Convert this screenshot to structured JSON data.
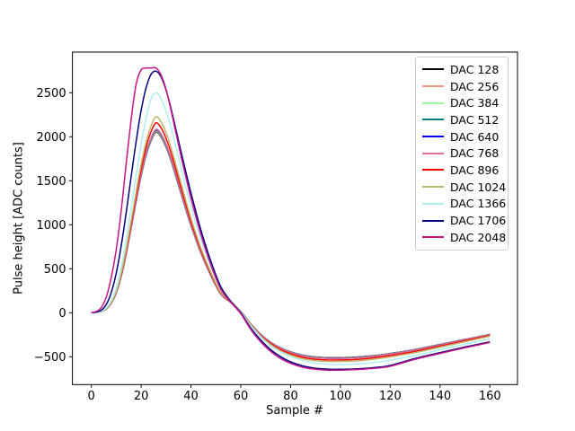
{
  "chart_data": {
    "type": "line",
    "title": "",
    "xlabel": "Sample #",
    "ylabel": "Pulse height [ADC counts]",
    "xlim": [
      -7.6,
      171.1
    ],
    "ylim": [
      -816,
      2962
    ],
    "x_ticks": [
      0,
      20,
      40,
      60,
      80,
      100,
      120,
      140,
      160
    ],
    "y_ticks": [
      -500,
      0,
      500,
      1000,
      1500,
      2000,
      2500
    ],
    "grid": false,
    "legend_position": "upper right",
    "frame_color": "#000000",
    "background_color": "#ffffff",
    "legend_border_color": "#cccccc",
    "x": [
      0,
      2,
      4,
      6,
      8,
      10,
      12,
      14,
      16,
      18,
      20,
      22,
      24,
      26,
      28,
      30,
      32,
      36,
      40,
      44,
      48,
      52,
      56,
      60,
      64,
      68,
      72,
      76,
      80,
      85,
      90,
      95,
      100,
      105,
      110,
      115,
      120,
      130,
      140,
      150,
      160
    ],
    "series": [
      {
        "name": "DAC 128",
        "color": "#000000",
        "values": [
          0,
          5,
          15,
          44,
          108,
          226,
          413,
          669,
          964,
          1269,
          1555,
          1791,
          1958,
          2052,
          1998,
          1884,
          1727,
          1353,
          989,
          679,
          423,
          212,
          118,
          15,
          -128,
          -246,
          -335,
          -399,
          -443,
          -482,
          -502,
          -510,
          -510,
          -506,
          -496,
          -481,
          -462,
          -417,
          -360,
          -303,
          -246
        ]
      },
      {
        "name": "DAC 256",
        "color": "#E9967A",
        "values": [
          0,
          5,
          15,
          44,
          109,
          227,
          415,
          672,
          968,
          1275,
          1561,
          1798,
          1966,
          2060,
          2006,
          1892,
          1734,
          1359,
          993,
          682,
          425,
          212,
          119,
          15,
          -128,
          -247,
          -336,
          -400,
          -445,
          -484,
          -504,
          -512,
          -512,
          -508,
          -498,
          -483,
          -464,
          -419,
          -362,
          -304,
          -247
        ]
      },
      {
        "name": "DAC 384",
        "color": "#98FB98",
        "values": [
          0,
          5,
          15,
          45,
          109,
          228,
          417,
          675,
          972,
          1280,
          1567,
          1805,
          1974,
          2068,
          2014,
          1900,
          1741,
          1364,
          997,
          685,
          427,
          213,
          119,
          15,
          -129,
          -248,
          -337,
          -402,
          -446,
          -486,
          -506,
          -514,
          -514,
          -510,
          -500,
          -485,
          -466,
          -421,
          -363,
          -306,
          -248
        ]
      },
      {
        "name": "DAC 512",
        "color": "#008080",
        "values": [
          0,
          5,
          15,
          45,
          109,
          229,
          418,
          677,
          975,
          1284,
          1572,
          1811,
          1980,
          2075,
          2020,
          1905,
          1746,
          1368,
          1000,
          687,
          428,
          214,
          119,
          15,
          -129,
          -249,
          -338,
          -403,
          -448,
          -488,
          -507,
          -515,
          -515,
          -511,
          -501,
          -487,
          -468,
          -422,
          -364,
          -306,
          -249
        ]
      },
      {
        "name": "DAC 640",
        "color": "#0000FF",
        "values": [
          0,
          5,
          15,
          45,
          110,
          230,
          419,
          679,
          978,
          1287,
          1577,
          1816,
          1986,
          2081,
          2026,
          1911,
          1751,
          1372,
          1003,
          689,
          429,
          215,
          120,
          15,
          -130,
          -250,
          -339,
          -404,
          -449,
          -489,
          -509,
          -517,
          -517,
          -513,
          -503,
          -488,
          -469,
          -423,
          -365,
          -307,
          -250
        ]
      },
      {
        "name": "DAC 768",
        "color": "#DB7093",
        "values": [
          0,
          5,
          15,
          45,
          110,
          230,
          420,
          680,
          980,
          1290,
          1580,
          1820,
          1990,
          2085,
          2030,
          1915,
          1755,
          1375,
          1005,
          690,
          430,
          215,
          120,
          15,
          -130,
          -250,
          -340,
          -405,
          -450,
          -490,
          -510,
          -518,
          -518,
          -514,
          -504,
          -489,
          -470,
          -424,
          -366,
          -308,
          -250
        ]
      },
      {
        "name": "DAC 896",
        "color": "#FF0000",
        "values": [
          0,
          5,
          16,
          47,
          114,
          238,
          435,
          704,
          1014,
          1335,
          1635,
          1884,
          2060,
          2158,
          2101,
          1982,
          1816,
          1423,
          1040,
          714,
          445,
          223,
          124,
          16,
          -135,
          -259,
          -352,
          -419,
          -466,
          -507,
          -528,
          -536,
          -536,
          -532,
          -522,
          -506,
          -486,
          -439,
          -379,
          -319,
          -259
        ]
      },
      {
        "name": "DAC 1024",
        "color": "#BDB76B",
        "values": [
          0,
          5,
          16,
          48,
          117,
          246,
          449,
          726,
          1047,
          1378,
          1687,
          1944,
          2125,
          2227,
          2168,
          2045,
          1874,
          1469,
          1073,
          737,
          459,
          230,
          128,
          16,
          -139,
          -267,
          -363,
          -433,
          -481,
          -523,
          -545,
          -553,
          -553,
          -549,
          -538,
          -522,
          -502,
          -453,
          -391,
          -329,
          -267
        ]
      },
      {
        "name": "DAC 1366",
        "color": "#AFEEEE",
        "values": [
          0,
          6,
          18,
          55,
          135,
          280,
          510,
          830,
          1190,
          1565,
          1915,
          2210,
          2430,
          2500,
          2430,
          2290,
          2100,
          1650,
          1210,
          835,
          520,
          262,
          125,
          8,
          -150,
          -275,
          -375,
          -445,
          -495,
          -545,
          -572,
          -585,
          -590,
          -587,
          -576,
          -560,
          -538,
          -486,
          -420,
          -357,
          -298
        ]
      },
      {
        "name": "DAC 1706",
        "color": "#000080",
        "values": [
          0,
          8,
          30,
          95,
          230,
          450,
          760,
          1140,
          1550,
          1950,
          2300,
          2560,
          2710,
          2745,
          2680,
          2530,
          2320,
          1830,
          1360,
          940,
          585,
          295,
          130,
          0,
          -175,
          -310,
          -420,
          -500,
          -558,
          -605,
          -630,
          -641,
          -643,
          -639,
          -631,
          -619,
          -599,
          -519,
          -453,
          -390,
          -330
        ]
      },
      {
        "name": "DAC 2048",
        "color": "#C71585",
        "values": [
          0,
          15,
          60,
          180,
          400,
          720,
          1160,
          1700,
          2200,
          2600,
          2760,
          2780,
          2780,
          2780,
          2700,
          2540,
          2300,
          1780,
          1300,
          890,
          545,
          268,
          120,
          -10,
          -190,
          -330,
          -440,
          -520,
          -575,
          -620,
          -642,
          -652,
          -652,
          -648,
          -640,
          -628,
          -608,
          -528,
          -462,
          -398,
          -338
        ]
      }
    ]
  }
}
